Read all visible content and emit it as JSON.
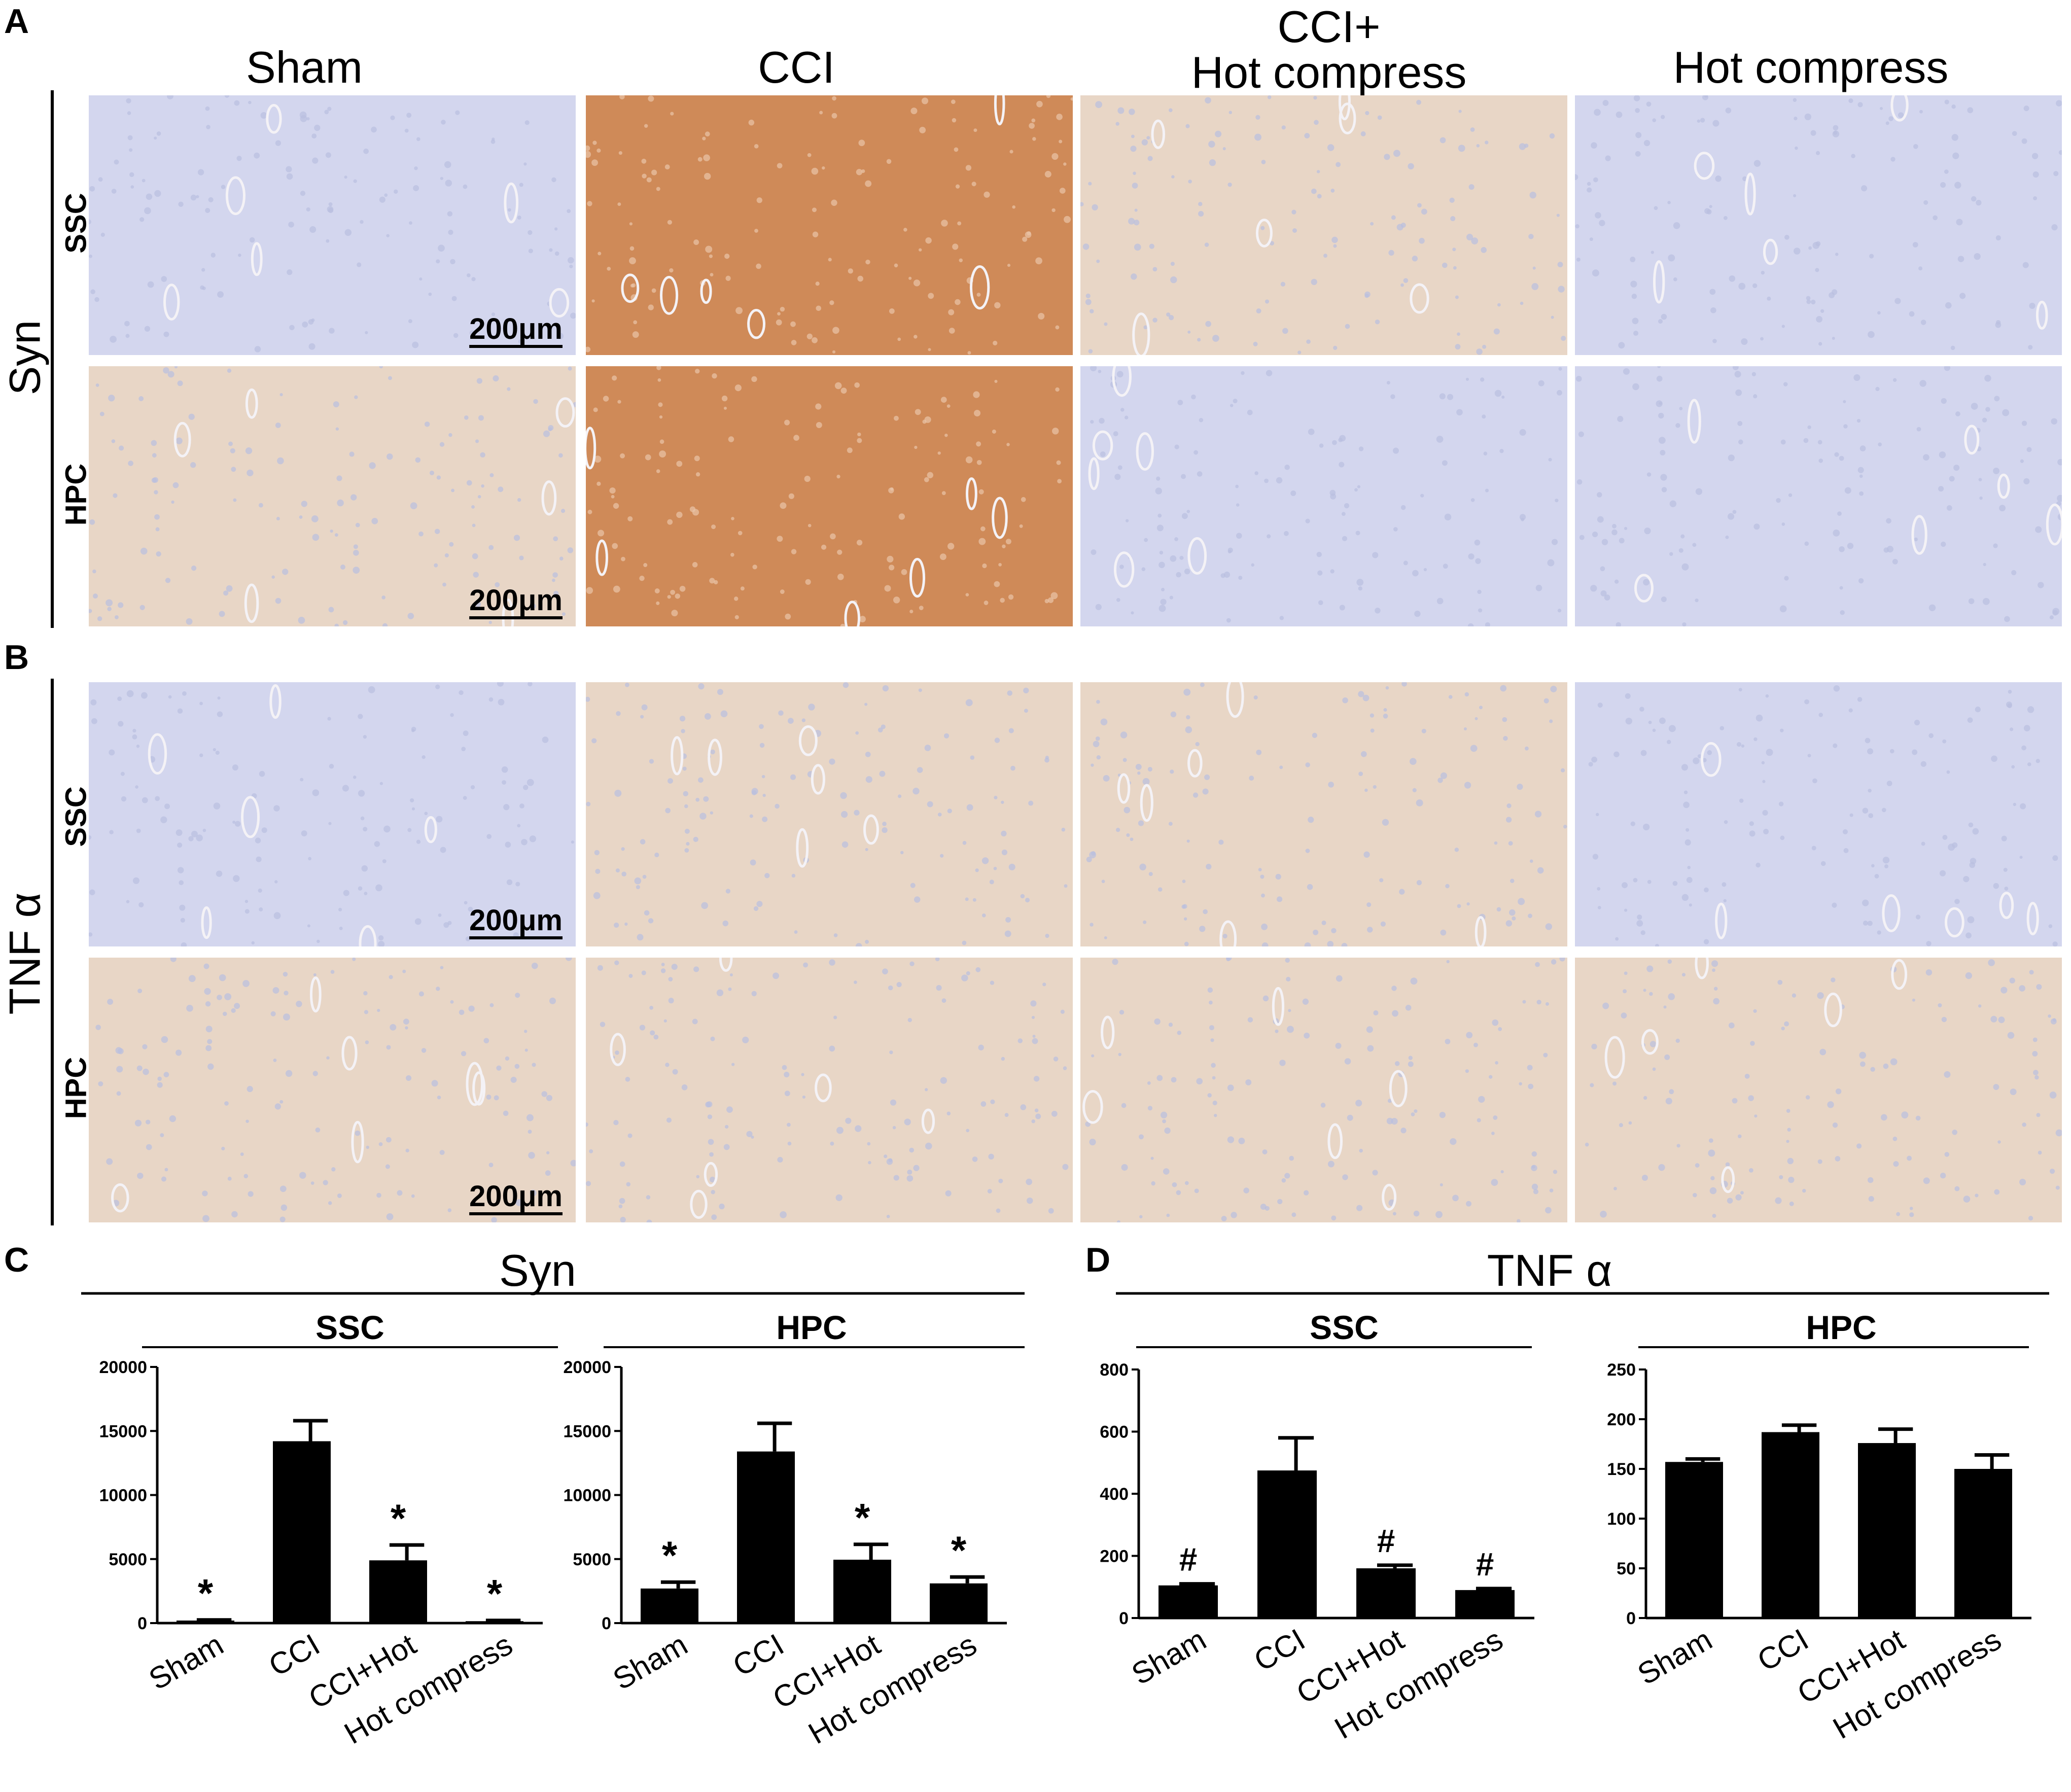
{
  "panel_labels": {
    "a": "A",
    "b": "B",
    "c": "C",
    "d": "D"
  },
  "columns": [
    "Sham",
    "CCI",
    "CCI+\nHot compress",
    "Hot compress"
  ],
  "rows": {
    "ssc": "SSC",
    "hpc": "HPC"
  },
  "groups": {
    "syn": "Syn",
    "tnf": "TNF α"
  },
  "scale_bar": "200μm",
  "stain_colors": {
    "hematoxylin": "#d3d6ee",
    "dab_strong": "#cf8a58",
    "dab_light": "#e8d6c6",
    "background": "#e8e6ec"
  },
  "micrographs": [
    {
      "group": "syn",
      "row": "ssc",
      "column": "Sham",
      "stain": "hematoxylin"
    },
    {
      "group": "syn",
      "row": "ssc",
      "column": "CCI",
      "stain": "dab_strong"
    },
    {
      "group": "syn",
      "row": "ssc",
      "column": "CCI+Hot compress",
      "stain": "dab_light"
    },
    {
      "group": "syn",
      "row": "ssc",
      "column": "Hot compress",
      "stain": "hematoxylin"
    },
    {
      "group": "syn",
      "row": "hpc",
      "column": "Sham",
      "stain": "dab_light"
    },
    {
      "group": "syn",
      "row": "hpc",
      "column": "CCI",
      "stain": "dab_strong"
    },
    {
      "group": "syn",
      "row": "hpc",
      "column": "CCI+Hot compress",
      "stain": "hematoxylin"
    },
    {
      "group": "syn",
      "row": "hpc",
      "column": "Hot compress",
      "stain": "hematoxylin"
    },
    {
      "group": "tnf",
      "row": "ssc",
      "column": "Sham",
      "stain": "hematoxylin"
    },
    {
      "group": "tnf",
      "row": "ssc",
      "column": "CCI",
      "stain": "dab_light"
    },
    {
      "group": "tnf",
      "row": "ssc",
      "column": "CCI+Hot compress",
      "stain": "dab_light"
    },
    {
      "group": "tnf",
      "row": "ssc",
      "column": "Hot compress",
      "stain": "hematoxylin"
    },
    {
      "group": "tnf",
      "row": "hpc",
      "column": "Sham",
      "stain": "dab_light"
    },
    {
      "group": "tnf",
      "row": "hpc",
      "column": "CCI",
      "stain": "dab_light"
    },
    {
      "group": "tnf",
      "row": "hpc",
      "column": "CCI+Hot compress",
      "stain": "dab_light"
    },
    {
      "group": "tnf",
      "row": "hpc",
      "column": "Hot compress",
      "stain": "dab_light"
    }
  ],
  "chart_data": [
    {
      "panel": "C",
      "group_title": "Syn",
      "title": "SSC",
      "type": "bar",
      "categories": [
        "Sham",
        "CCI",
        "CCI+Hot",
        "Hot compress"
      ],
      "values": [
        200,
        14200,
        4900,
        150
      ],
      "errors": [
        50,
        1600,
        1200,
        60
      ],
      "markers": [
        "*",
        "",
        "*",
        "*"
      ],
      "ylim": [
        0,
        20000
      ],
      "yticks": [
        "0",
        "5000",
        "10000",
        "15000",
        "20000"
      ]
    },
    {
      "panel": "C",
      "group_title": "Syn",
      "title": "HPC",
      "type": "bar",
      "categories": [
        "Sham",
        "CCI",
        "CCI+Hot",
        "Hot compress"
      ],
      "values": [
        2700,
        13400,
        4950,
        3100
      ],
      "errors": [
        500,
        2200,
        1200,
        500
      ],
      "markers": [
        "*",
        "",
        "*",
        "*"
      ],
      "ylim": [
        0,
        20000
      ],
      "yticks": [
        "0",
        "5000",
        "10000",
        "15000",
        "20000"
      ]
    },
    {
      "panel": "D",
      "group_title": "TNF α",
      "title": "SSC",
      "type": "bar",
      "categories": [
        "Sham",
        "CCI",
        "CCI+Hot",
        "Hot compress"
      ],
      "values": [
        105,
        475,
        160,
        90
      ],
      "errors": [
        5,
        105,
        10,
        5
      ],
      "markers": [
        "#",
        "",
        "#",
        "#"
      ],
      "ylim": [
        0,
        800
      ],
      "yticks": [
        "0",
        "200",
        "400",
        "600",
        "800"
      ]
    },
    {
      "panel": "D",
      "group_title": "TNF α",
      "title": "HPC",
      "type": "bar",
      "categories": [
        "Sham",
        "CCI",
        "CCI+Hot",
        "Hot compress"
      ],
      "values": [
        157,
        187,
        176,
        150
      ],
      "errors": [
        3,
        7,
        14,
        14
      ],
      "markers": [
        "",
        "",
        "",
        ""
      ],
      "ylim": [
        0,
        250
      ],
      "yticks": [
        "0",
        "50",
        "100",
        "150",
        "200",
        "250"
      ]
    }
  ]
}
